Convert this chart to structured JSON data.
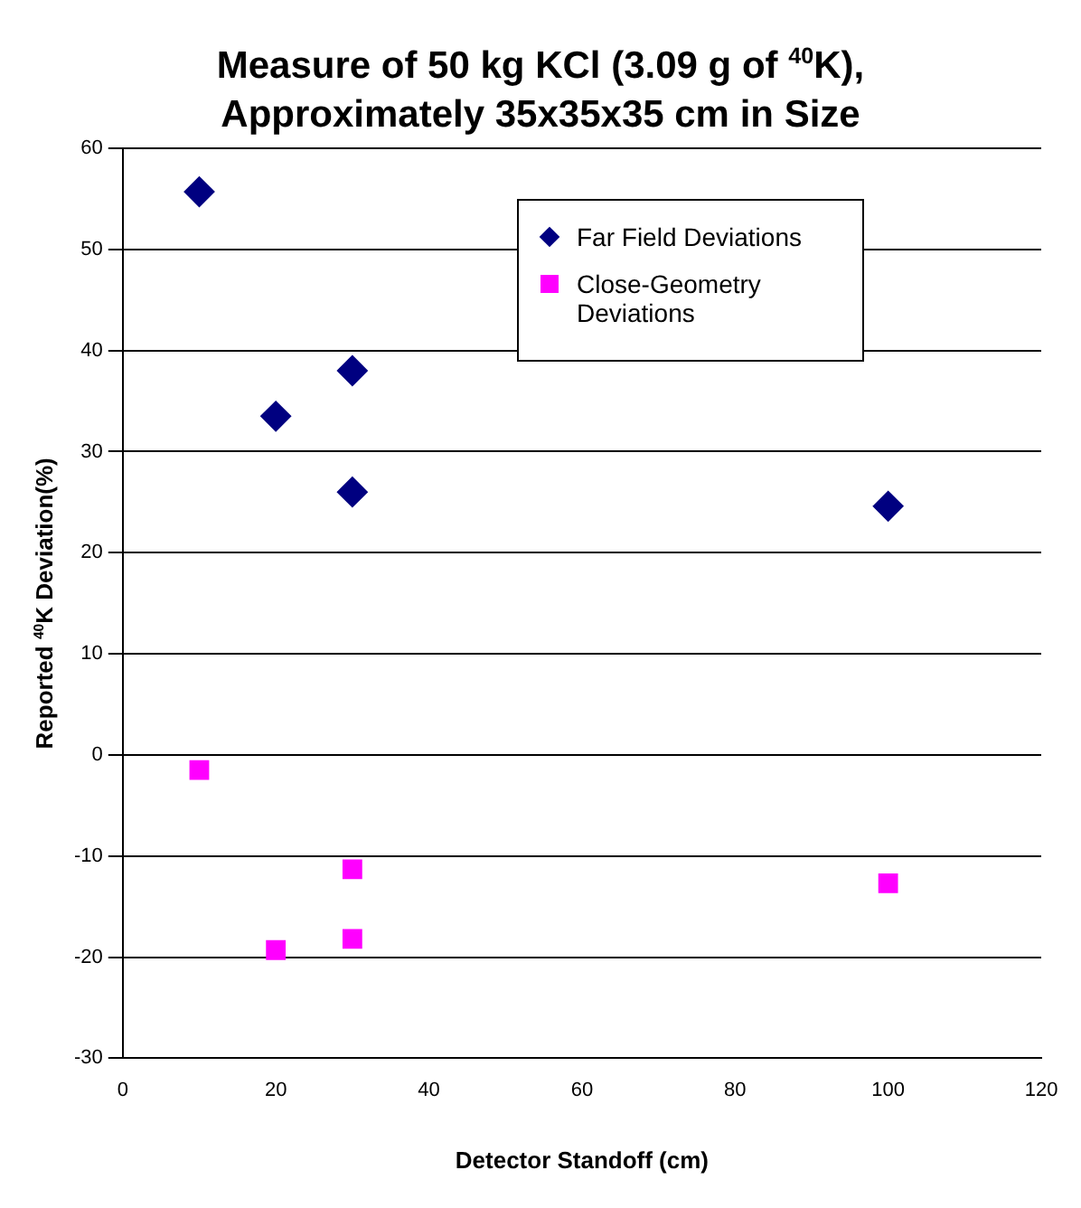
{
  "chart_data": {
    "type": "scatter",
    "title": "Measure of 50 kg KCl (3.09 g of $^{40}$K), Approximately 35x35x35 cm in Size",
    "xlabel": "Detector Standoff (cm)",
    "ylabel": "Reported $^{40}$K Deviation(%)",
    "series": [
      {
        "name": "Far Field Deviations",
        "color": "#000080",
        "marker": "diamond",
        "x": [
          10,
          20,
          30,
          30,
          100
        ],
        "values": [
          55.7,
          33.5,
          38,
          26,
          24.6
        ]
      },
      {
        "name": "Close-Geometry Deviations",
        "color": "#ff00ff",
        "marker": "square",
        "x": [
          10,
          20,
          30,
          30,
          100
        ],
        "values": [
          -1.5,
          -19.3,
          -11.3,
          -18.2,
          -12.7
        ]
      }
    ],
    "xlim": [
      0,
      120
    ],
    "xticks": [
      0,
      20,
      40,
      60,
      80,
      100,
      120
    ],
    "ylim": [
      -30,
      60
    ],
    "yticks": [
      -30,
      -20,
      -10,
      0,
      10,
      20,
      30,
      40,
      50,
      60
    ],
    "grid": "y",
    "legend": "top right"
  }
}
